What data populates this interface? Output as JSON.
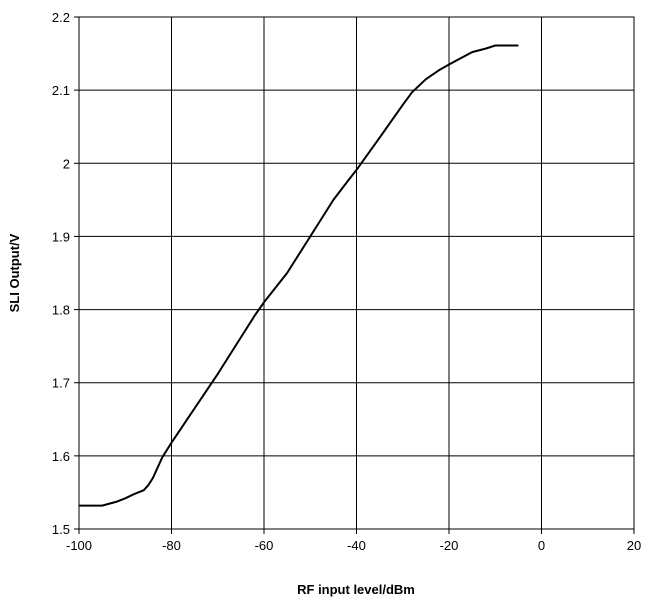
{
  "chart_data": {
    "type": "line",
    "title": "",
    "xlabel": "RF input level/dBm",
    "ylabel": "SLI Output/V",
    "xlim": [
      -100,
      20
    ],
    "ylim": [
      1.5,
      2.2
    ],
    "xticks": [
      -100,
      -80,
      -60,
      -40,
      -20,
      0,
      20
    ],
    "yticks": [
      1.5,
      1.6,
      1.7,
      1.8,
      1.9,
      2.0,
      2.1,
      2.2
    ],
    "xtick_labels": [
      "-100",
      "-80",
      "-60",
      "-40",
      "-20",
      "0",
      "20"
    ],
    "ytick_labels": [
      "1.5",
      "1.6",
      "1.7",
      "1.8",
      "1.9",
      "2",
      "2.1",
      "2.2"
    ],
    "grid": true,
    "legend": false,
    "series": [
      {
        "color": "#000000",
        "x": [
          -100,
          -95,
          -92,
          -90,
          -88,
          -86,
          -85,
          -84,
          -83,
          -82,
          -80,
          -75,
          -70,
          -65,
          -62,
          -60,
          -55,
          -50,
          -45,
          -42,
          -40,
          -35,
          -30,
          -28,
          -25,
          -22,
          -20,
          -15,
          -12,
          -10,
          -5
        ],
        "y": [
          1.532,
          1.532,
          1.537,
          1.542,
          1.548,
          1.553,
          1.56,
          1.57,
          1.584,
          1.598,
          1.618,
          1.665,
          1.712,
          1.762,
          1.792,
          1.81,
          1.85,
          1.9,
          1.95,
          1.975,
          1.991,
          2.035,
          2.08,
          2.097,
          2.115,
          2.128,
          2.135,
          2.152,
          2.157,
          2.161,
          2.161
        ]
      }
    ]
  }
}
